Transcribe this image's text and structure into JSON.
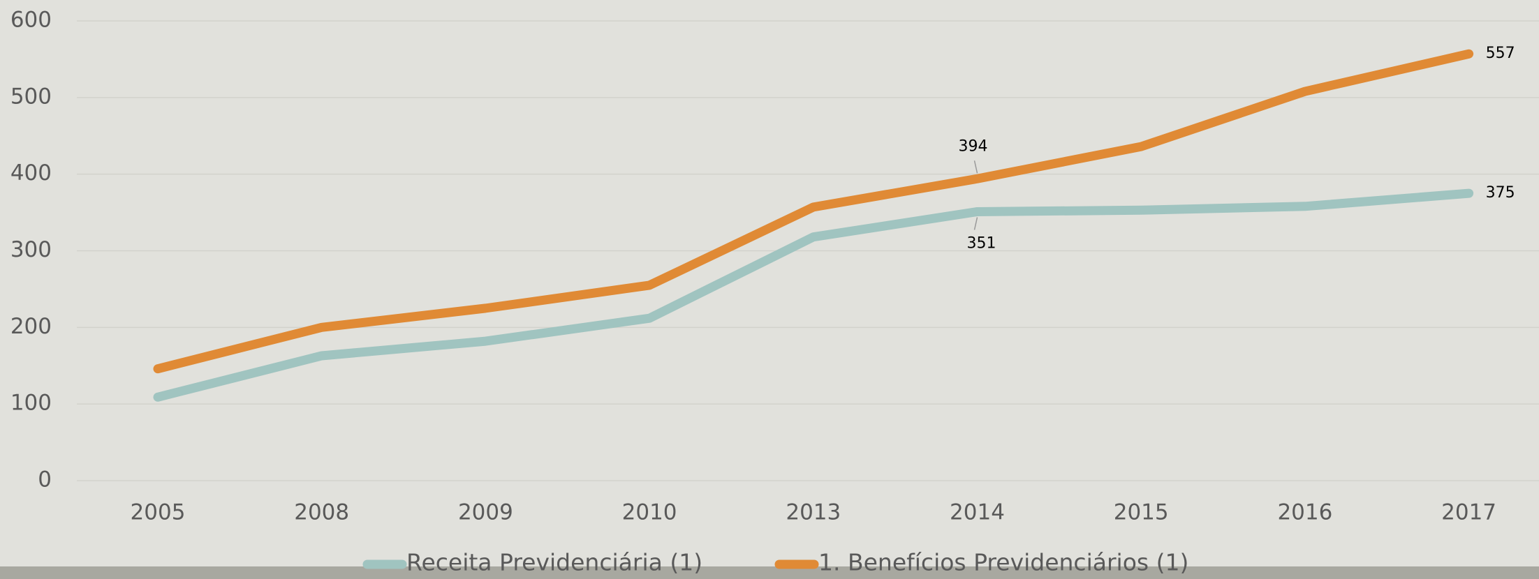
{
  "chart_data": {
    "type": "line",
    "categories": [
      "2005",
      "2008",
      "2009",
      "2010",
      "2013",
      "2014",
      "2015",
      "2016",
      "2017"
    ],
    "series": [
      {
        "name": "Receita Previdenciária (1)",
        "color": "#a0c4c0",
        "values": [
          109,
          163,
          182,
          212,
          318,
          351,
          353,
          358,
          375
        ],
        "value_labels": [
          null,
          null,
          null,
          null,
          null,
          "351",
          null,
          null,
          "375"
        ]
      },
      {
        "name": "1. Benefícios Previdenciários (1)",
        "color": "#e08a35",
        "values": [
          146,
          200,
          225,
          255,
          357,
          394,
          436,
          508,
          557
        ],
        "value_labels": [
          null,
          null,
          null,
          null,
          null,
          "394",
          null,
          null,
          "557"
        ]
      }
    ],
    "ylim": [
      0,
      600
    ],
    "yticks": [
      0,
      100,
      200,
      300,
      400,
      500,
      600
    ],
    "grid": true,
    "legend": "bottom"
  }
}
